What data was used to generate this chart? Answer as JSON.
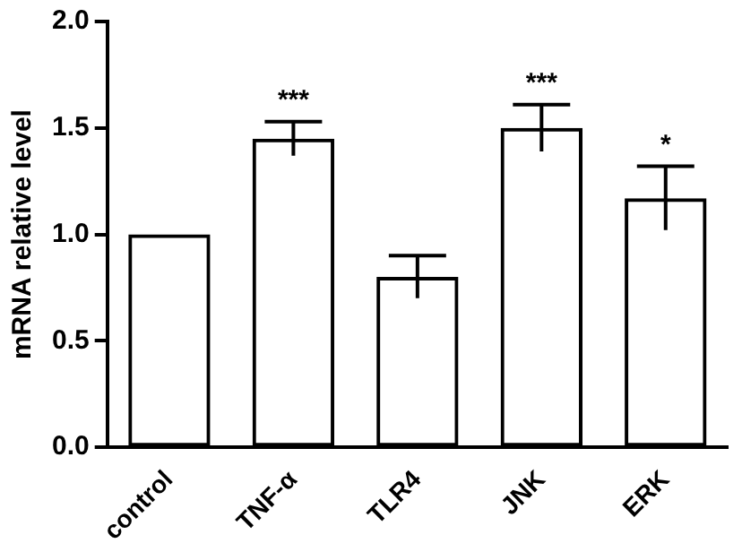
{
  "chart_data": {
    "type": "bar",
    "ylabel": "mRNA relative level",
    "categories": [
      "control",
      "TNF-α",
      "TLR4",
      "JNK",
      "ERK"
    ],
    "values": [
      1.0,
      1.45,
      0.8,
      1.5,
      1.17
    ],
    "errors": [
      null,
      0.08,
      0.1,
      0.11,
      0.15
    ],
    "color": "#000000",
    "ylim": [
      0,
      2
    ],
    "yticks": [
      {
        "value": 0,
        "label": "0.0"
      },
      {
        "value": 0.5,
        "label": "0.5"
      },
      {
        "value": 1,
        "label": "1.0"
      },
      {
        "value": 1.5,
        "label": "1.5"
      },
      {
        "value": 2,
        "label": "2.0"
      }
    ],
    "annotations": [
      {
        "text": "***",
        "x": "TNF-α",
        "y": 1.53
      },
      {
        "text": "***",
        "x": "JNK",
        "y": 1.61
      },
      {
        "text": "*",
        "x": "ERK",
        "y": 1.32
      }
    ],
    "grid": false,
    "legend": false
  }
}
